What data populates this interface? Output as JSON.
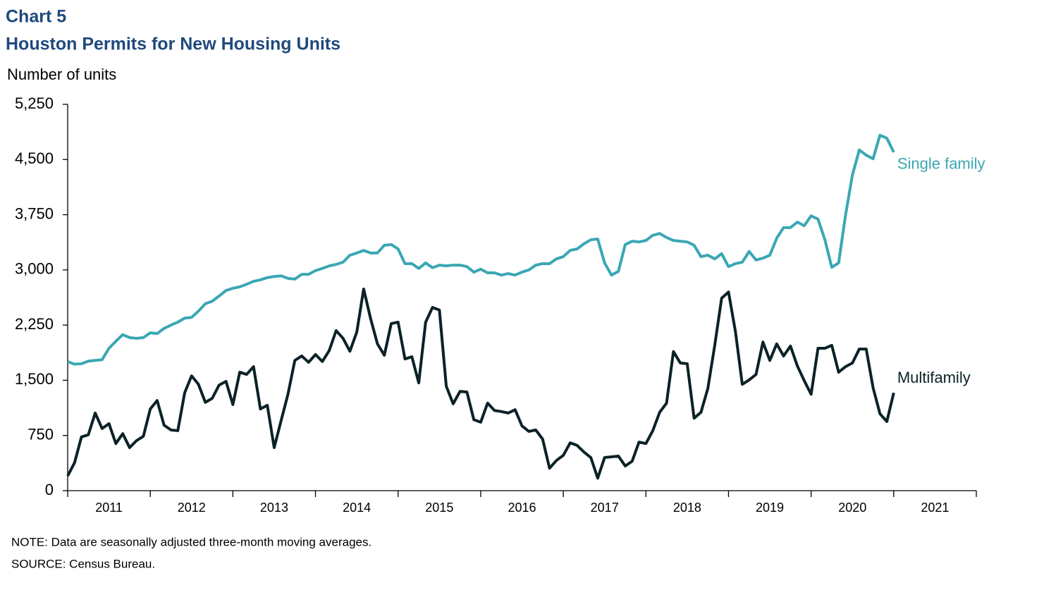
{
  "chart_data": {
    "type": "line",
    "title": "Chart 5",
    "subtitle": "Houston Permits for New Housing Units",
    "y_label": "Number of units",
    "note": "NOTE: Data are seasonally adjusted three-month moving averages.",
    "source": "SOURCE: Census Bureau.",
    "ylim": [
      0,
      5250
    ],
    "yticks": [
      0,
      {
        "value": 750,
        "label": "750"
      },
      {
        "value": 1500,
        "label": "1,500"
      },
      {
        "value": 2250,
        "label": "2,250"
      },
      {
        "value": 3000,
        "label": "3,000"
      },
      {
        "value": 3750,
        "label": "3,750"
      },
      {
        "value": 4500,
        "label": "4,500"
      },
      {
        "value": 5250,
        "label": "5,250"
      }
    ],
    "categories": [
      null,
      null,
      null,
      null,
      null,
      null,
      "2011",
      null,
      null,
      null,
      null,
      null,
      null,
      null,
      null,
      null,
      null,
      null,
      "2012",
      null,
      null,
      null,
      null,
      null,
      null,
      null,
      null,
      null,
      null,
      null,
      "2013",
      null,
      null,
      null,
      null,
      null,
      null,
      null,
      null,
      null,
      null,
      null,
      "2014",
      null,
      null,
      null,
      null,
      null,
      null,
      null,
      null,
      null,
      null,
      null,
      "2015",
      null,
      null,
      null,
      null,
      null,
      null,
      null,
      null,
      null,
      null,
      null,
      "2016",
      null,
      null,
      null,
      null,
      null,
      null,
      null,
      null,
      null,
      null,
      null,
      "2017",
      null,
      null,
      null,
      null,
      null,
      null,
      null,
      null,
      null,
      null,
      null,
      "2018",
      null,
      null,
      null,
      null,
      null,
      null,
      null,
      null,
      null,
      null,
      null,
      "2019",
      null,
      null,
      null,
      null,
      null,
      null,
      null,
      null,
      null,
      null,
      null,
      "2020",
      null,
      null,
      null,
      null,
      null,
      null,
      null,
      null,
      null,
      null,
      null,
      "2021",
      null,
      null,
      null,
      null,
      null
    ],
    "series": [
      {
        "name": "Single family",
        "color": "#3aa7b3",
        "values": [
          1753,
          1720,
          1725,
          1760,
          1770,
          1780,
          1935,
          2030,
          2120,
          2080,
          2070,
          2080,
          2145,
          2135,
          2205,
          2250,
          2290,
          2345,
          2355,
          2440,
          2540,
          2575,
          2645,
          2720,
          2750,
          2770,
          2805,
          2845,
          2865,
          2895,
          2910,
          2920,
          2885,
          2875,
          2940,
          2940,
          2990,
          3020,
          3055,
          3075,
          3105,
          3200,
          3230,
          3265,
          3230,
          3230,
          3335,
          3345,
          3285,
          3085,
          3085,
          3020,
          3095,
          3030,
          3065,
          3055,
          3065,
          3065,
          3045,
          2970,
          3010,
          2960,
          2960,
          2930,
          2950,
          2930,
          2970,
          3000,
          3065,
          3085,
          3085,
          3150,
          3180,
          3265,
          3285,
          3355,
          3410,
          3420,
          3095,
          2930,
          2980,
          3345,
          3390,
          3380,
          3400,
          3470,
          3495,
          3440,
          3400,
          3390,
          3380,
          3335,
          3180,
          3200,
          3150,
          3220,
          3045,
          3085,
          3105,
          3250,
          3135,
          3160,
          3200,
          3430,
          3575,
          3575,
          3650,
          3600,
          3735,
          3690,
          3410,
          3035,
          3095,
          3745,
          4290,
          4630,
          4560,
          4510,
          4830,
          4790,
          4600,
          null,
          null,
          null,
          null,
          null,
          null,
          null,
          null,
          null,
          null,
          null
        ]
      },
      {
        "name": "Multifamily",
        "color": "#0b2227",
        "values": [
          200,
          380,
          730,
          760,
          1055,
          845,
          910,
          640,
          775,
          585,
          680,
          740,
          1110,
          1225,
          890,
          825,
          815,
          1330,
          1560,
          1445,
          1200,
          1255,
          1435,
          1485,
          1170,
          1610,
          1580,
          1685,
          1110,
          1160,
          585,
          950,
          1310,
          1770,
          1830,
          1745,
          1850,
          1755,
          1905,
          2175,
          2070,
          1895,
          2155,
          2740,
          2340,
          1995,
          1840,
          2270,
          2290,
          1790,
          1820,
          1465,
          2290,
          2490,
          2455,
          1420,
          1180,
          1350,
          1340,
          965,
          930,
          1190,
          1090,
          1075,
          1055,
          1100,
          880,
          805,
          825,
          700,
          305,
          410,
          480,
          650,
          615,
          525,
          450,
          170,
          450,
          460,
          470,
          335,
          400,
          660,
          640,
          815,
          1065,
          1190,
          1890,
          1735,
          1725,
          985,
          1065,
          1390,
          1975,
          2615,
          2700,
          2165,
          1445,
          1505,
          1580,
          2020,
          1770,
          1995,
          1830,
          1965,
          1695,
          1495,
          1310,
          1935,
          1935,
          1975,
          1610,
          1685,
          1735,
          1925,
          1925,
          1400,
          1045,
          940,
          1330,
          null,
          null,
          null,
          null,
          null,
          null,
          null,
          null,
          null,
          null,
          null
        ]
      }
    ]
  }
}
